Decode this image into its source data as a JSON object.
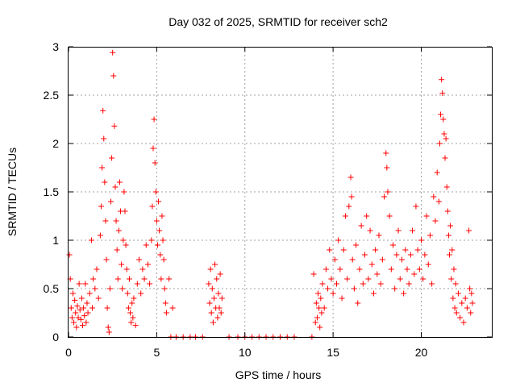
{
  "chart_data": {
    "type": "scatter",
    "title": "Day 032 of 2025, SRMTID for receiver sch2",
    "xlabel": "GPS time / hours",
    "ylabel": "SRMTID / TECUs",
    "xlim": [
      0,
      24
    ],
    "ylim": [
      0,
      3
    ],
    "xticks": [
      0,
      5,
      10,
      15,
      20
    ],
    "yticks": [
      0,
      0.5,
      1,
      1.5,
      2,
      2.5,
      3
    ],
    "xtick_labels": [
      "0",
      "5",
      "10",
      "15",
      "20"
    ],
    "ytick_labels": [
      "0",
      "0.5",
      "1",
      "1.5",
      "2",
      "2.5",
      "3"
    ],
    "grid": true,
    "marker": "+",
    "color": "#ff0000",
    "series": [
      {
        "name": "SRMTID",
        "points": [
          [
            0.05,
            0.85
          ],
          [
            0.1,
            0.6
          ],
          [
            0.15,
            0.3
          ],
          [
            0.2,
            0.2
          ],
          [
            0.25,
            0.45
          ],
          [
            0.3,
            0.15
          ],
          [
            0.35,
            0.38
          ],
          [
            0.4,
            0.25
          ],
          [
            0.45,
            0.1
          ],
          [
            0.5,
            0.32
          ],
          [
            0.55,
            0.2
          ],
          [
            0.6,
            0.55
          ],
          [
            0.65,
            0.28
          ],
          [
            0.7,
            0.18
          ],
          [
            0.75,
            0.4
          ],
          [
            0.8,
            0.12
          ],
          [
            0.85,
            0.3
          ],
          [
            0.9,
            0.22
          ],
          [
            0.95,
            0.55
          ],
          [
            1.0,
            0.15
          ],
          [
            1.05,
            0.35
          ],
          [
            1.1,
            0.25
          ],
          [
            1.2,
            0.45
          ],
          [
            1.3,
            1.0
          ],
          [
            1.35,
            0.3
          ],
          [
            1.4,
            0.6
          ],
          [
            1.5,
            0.5
          ],
          [
            1.6,
            0.7
          ],
          [
            1.7,
            0.4
          ],
          [
            1.8,
            1.05
          ],
          [
            1.85,
            1.35
          ],
          [
            1.9,
            1.75
          ],
          [
            1.95,
            2.34
          ],
          [
            2.0,
            2.05
          ],
          [
            2.05,
            1.6
          ],
          [
            2.1,
            1.2
          ],
          [
            2.15,
            0.8
          ],
          [
            2.2,
            0.3
          ],
          [
            2.25,
            0.1
          ],
          [
            2.3,
            0.05
          ],
          [
            2.35,
            0.5
          ],
          [
            2.4,
            1.4
          ],
          [
            2.45,
            1.85
          ],
          [
            2.5,
            2.94
          ],
          [
            2.55,
            2.7
          ],
          [
            2.6,
            2.18
          ],
          [
            2.65,
            1.55
          ],
          [
            2.7,
            1.2
          ],
          [
            2.75,
            0.9
          ],
          [
            2.8,
            0.6
          ],
          [
            2.85,
            1.1
          ],
          [
            2.9,
            1.6
          ],
          [
            2.95,
            1.3
          ],
          [
            3.0,
            0.75
          ],
          [
            3.05,
            0.5
          ],
          [
            3.1,
            1.0
          ],
          [
            3.15,
            1.5
          ],
          [
            3.2,
            1.3
          ],
          [
            3.25,
            0.95
          ],
          [
            3.3,
            0.7
          ],
          [
            3.35,
            0.45
          ],
          [
            3.4,
            0.3
          ],
          [
            3.45,
            0.6
          ],
          [
            3.5,
            0.25
          ],
          [
            3.55,
            0.15
          ],
          [
            3.6,
            0.35
          ],
          [
            3.65,
            0.2
          ],
          [
            3.7,
            0.4
          ],
          [
            3.8,
            0.12
          ],
          [
            3.9,
            0.55
          ],
          [
            4.0,
            0.8
          ],
          [
            4.1,
            0.45
          ],
          [
            4.2,
            0.7
          ],
          [
            4.3,
            0.6
          ],
          [
            4.4,
            0.95
          ],
          [
            4.5,
            0.75
          ],
          [
            4.6,
            0.55
          ],
          [
            4.7,
            1.0
          ],
          [
            4.75,
            1.35
          ],
          [
            4.8,
            1.95
          ],
          [
            4.85,
            2.25
          ],
          [
            4.9,
            1.8
          ],
          [
            4.95,
            1.5
          ],
          [
            5.0,
            1.2
          ],
          [
            5.05,
            0.95
          ],
          [
            5.1,
            1.4
          ],
          [
            5.15,
            1.1
          ],
          [
            5.2,
            0.85
          ],
          [
            5.25,
            0.6
          ],
          [
            5.3,
            1.25
          ],
          [
            5.35,
            1.0
          ],
          [
            5.4,
            0.8
          ],
          [
            5.45,
            0.5
          ],
          [
            5.5,
            0.35
          ],
          [
            5.55,
            0.25
          ],
          [
            5.7,
            0.6
          ],
          [
            5.9,
            0.3
          ],
          [
            5.8,
            0.0
          ],
          [
            6.1,
            0.0
          ],
          [
            6.5,
            0.0
          ],
          [
            6.9,
            0.0
          ],
          [
            7.2,
            0.0
          ],
          [
            7.6,
            0.0
          ],
          [
            7.95,
            0.55
          ],
          [
            8.0,
            0.35
          ],
          [
            8.05,
            0.7
          ],
          [
            8.1,
            0.25
          ],
          [
            8.15,
            0.5
          ],
          [
            8.2,
            0.15
          ],
          [
            8.25,
            0.4
          ],
          [
            8.3,
            0.75
          ],
          [
            8.35,
            0.3
          ],
          [
            8.4,
            0.6
          ],
          [
            8.45,
            0.2
          ],
          [
            8.5,
            0.45
          ],
          [
            8.55,
            0.3
          ],
          [
            8.6,
            0.65
          ],
          [
            8.65,
            0.25
          ],
          [
            8.7,
            0.4
          ],
          [
            9.1,
            0.0
          ],
          [
            9.6,
            0.0
          ],
          [
            10.0,
            0.0
          ],
          [
            10.4,
            0.0
          ],
          [
            10.8,
            0.0
          ],
          [
            11.2,
            0.0
          ],
          [
            11.6,
            0.0
          ],
          [
            12.0,
            0.0
          ],
          [
            12.4,
            0.0
          ],
          [
            12.8,
            0.0
          ],
          [
            13.8,
            0.0
          ],
          [
            13.9,
            0.65
          ],
          [
            14.0,
            0.15
          ],
          [
            14.05,
            0.35
          ],
          [
            14.1,
            0.2
          ],
          [
            14.15,
            0.45
          ],
          [
            14.2,
            0.3
          ],
          [
            14.25,
            0.1
          ],
          [
            14.3,
            0.4
          ],
          [
            14.35,
            0.25
          ],
          [
            14.4,
            0.55
          ],
          [
            14.5,
            0.3
          ],
          [
            14.6,
            0.7
          ],
          [
            14.7,
            0.5
          ],
          [
            14.8,
            0.9
          ],
          [
            14.9,
            0.6
          ],
          [
            15.0,
            0.45
          ],
          [
            15.1,
            0.8
          ],
          [
            15.2,
            0.55
          ],
          [
            15.3,
            1.0
          ],
          [
            15.4,
            0.7
          ],
          [
            15.5,
            0.4
          ],
          [
            15.6,
            0.9
          ],
          [
            15.7,
            1.25
          ],
          [
            15.8,
            0.6
          ],
          [
            15.9,
            1.35
          ],
          [
            16.0,
            1.65
          ],
          [
            16.05,
            1.45
          ],
          [
            16.1,
            0.8
          ],
          [
            16.2,
            0.5
          ],
          [
            16.3,
            0.95
          ],
          [
            16.4,
            0.35
          ],
          [
            16.5,
            0.7
          ],
          [
            16.6,
            1.15
          ],
          [
            16.7,
            0.55
          ],
          [
            16.8,
            0.85
          ],
          [
            16.9,
            1.25
          ],
          [
            17.0,
            0.6
          ],
          [
            17.1,
            1.1
          ],
          [
            17.2,
            0.75
          ],
          [
            17.3,
            0.45
          ],
          [
            17.4,
            0.9
          ],
          [
            17.5,
            0.65
          ],
          [
            17.6,
            1.05
          ],
          [
            17.7,
            0.55
          ],
          [
            17.8,
            0.8
          ],
          [
            17.9,
            1.45
          ],
          [
            18.0,
            1.9
          ],
          [
            18.05,
            1.75
          ],
          [
            18.1,
            1.5
          ],
          [
            18.2,
            1.25
          ],
          [
            18.3,
            0.7
          ],
          [
            18.4,
            0.95
          ],
          [
            18.5,
            0.5
          ],
          [
            18.6,
            0.85
          ],
          [
            18.7,
            1.1
          ],
          [
            18.8,
            0.6
          ],
          [
            18.9,
            0.8
          ],
          [
            19.0,
            0.45
          ],
          [
            19.1,
            0.9
          ],
          [
            19.2,
            0.7
          ],
          [
            19.3,
            0.55
          ],
          [
            19.4,
            0.85
          ],
          [
            19.5,
            1.1
          ],
          [
            19.6,
            0.65
          ],
          [
            19.7,
            1.35
          ],
          [
            19.8,
            0.9
          ],
          [
            19.9,
            0.7
          ],
          [
            20.0,
            1.0
          ],
          [
            20.1,
            0.6
          ],
          [
            20.2,
            0.85
          ],
          [
            20.3,
            1.25
          ],
          [
            20.4,
            0.75
          ],
          [
            20.5,
            1.05
          ],
          [
            20.6,
            0.55
          ],
          [
            20.7,
            1.45
          ],
          [
            20.8,
            1.2
          ],
          [
            20.9,
            1.7
          ],
          [
            21.0,
            1.4
          ],
          [
            21.05,
            2.0
          ],
          [
            21.1,
            2.3
          ],
          [
            21.15,
            2.66
          ],
          [
            21.2,
            2.52
          ],
          [
            21.25,
            2.25
          ],
          [
            21.3,
            2.1
          ],
          [
            21.35,
            1.85
          ],
          [
            21.4,
            2.05
          ],
          [
            21.45,
            1.55
          ],
          [
            21.5,
            1.3
          ],
          [
            21.55,
            1.05
          ],
          [
            21.6,
            0.85
          ],
          [
            21.65,
            1.15
          ],
          [
            21.7,
            0.6
          ],
          [
            21.75,
            0.9
          ],
          [
            21.8,
            0.4
          ],
          [
            21.85,
            0.7
          ],
          [
            21.9,
            0.3
          ],
          [
            21.95,
            0.55
          ],
          [
            22.0,
            0.25
          ],
          [
            22.1,
            0.45
          ],
          [
            22.2,
            0.2
          ],
          [
            22.3,
            0.35
          ],
          [
            22.4,
            0.15
          ],
          [
            22.5,
            0.4
          ],
          [
            22.6,
            0.3
          ],
          [
            22.7,
            1.1
          ],
          [
            22.75,
            0.5
          ],
          [
            22.8,
            0.25
          ],
          [
            22.85,
            0.45
          ],
          [
            22.9,
            0.35
          ]
        ]
      }
    ]
  }
}
